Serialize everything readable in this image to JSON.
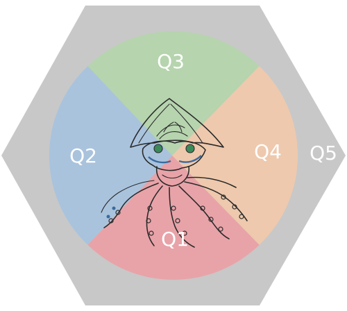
{
  "diagram": {
    "hexagon_color": "#c8c8c8",
    "regions": [
      {
        "id": "Q1",
        "label": "Q1",
        "color": "#e8a3a8"
      },
      {
        "id": "Q2",
        "label": "Q2",
        "color": "#a9c3dd"
      },
      {
        "id": "Q3",
        "label": "Q3",
        "color": "#b6d4ae"
      },
      {
        "id": "Q4",
        "label": "Q4",
        "color": "#eec9ad"
      },
      {
        "id": "Q5",
        "label": "Q5",
        "color": "#c8c8c8"
      }
    ],
    "figure": "octopus-sketch",
    "figure_accent_colors": [
      "#3a8a5a",
      "#3a6aa0"
    ]
  }
}
